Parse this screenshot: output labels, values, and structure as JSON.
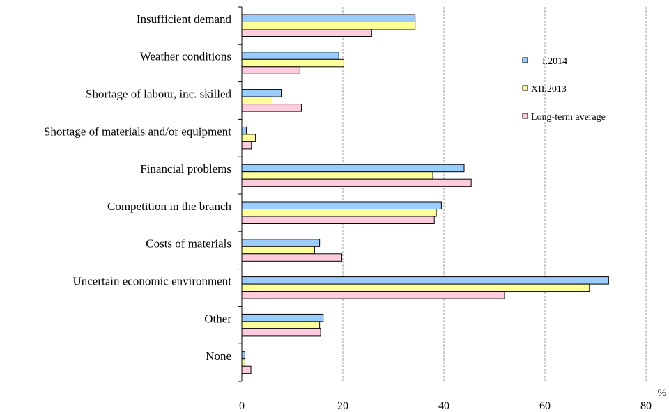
{
  "chart_data": {
    "type": "bar",
    "orientation": "horizontal",
    "categories": [
      "Insufficient demand",
      "Weather conditions",
      "Shortage of labour, inc. skilled",
      "Shortage of materials and/or equipment",
      "Financial problems",
      "Competition in the branch",
      "Costs of materials",
      "Uncertain economic environment",
      "Other",
      "None"
    ],
    "series": [
      {
        "name": "I.2014",
        "color": "#99ccff",
        "values": [
          34.3,
          19.2,
          7.8,
          0.9,
          44.0,
          39.5,
          15.4,
          72.6,
          16.1,
          0.6
        ]
      },
      {
        "name": "XII.2013",
        "color": "#ffff99",
        "values": [
          34.3,
          20.2,
          6.0,
          2.7,
          37.8,
          38.5,
          14.4,
          68.8,
          15.4,
          0.6
        ]
      },
      {
        "name": "Long-term average",
        "color": "#ffccdd",
        "values": [
          25.7,
          11.5,
          11.8,
          1.9,
          45.4,
          38.1,
          19.8,
          52.0,
          15.6,
          1.8
        ]
      }
    ],
    "xlim": [
      0,
      80
    ],
    "xticks": [
      "0",
      "20",
      "40",
      "60",
      "80"
    ],
    "xunit": "%",
    "grid": "vertical dashed",
    "legend": "top-right"
  }
}
